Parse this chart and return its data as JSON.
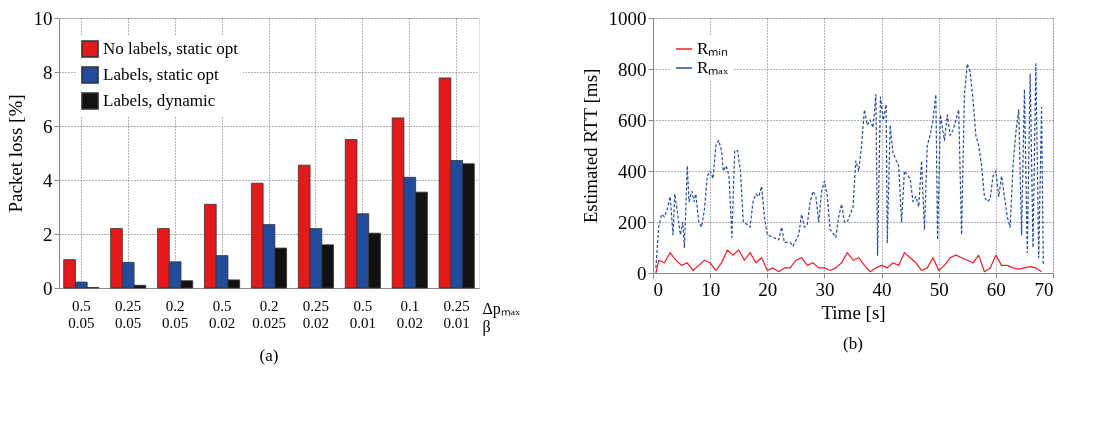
{
  "chart_data": [
    {
      "type": "bar",
      "ylabel": "Packet loss [%]",
      "xlabel": "Δpₘₐₓ\nβ",
      "annotations": [
        "(a)"
      ],
      "categories": [
        "0.5\n0.05",
        "0.25\n0.05",
        "0.2\n0.05",
        "0.5\n0.02",
        "0.2\n0.025",
        "0.25\n0.02",
        "0.5\n0.01",
        "0.1\n0.02",
        "0.25\n0.01"
      ],
      "series": [
        {
          "name": "No labels, static opt",
          "color": "#e31a1c",
          "values": [
            1.05,
            2.2,
            2.2,
            3.1,
            3.88,
            4.55,
            5.5,
            6.3,
            7.78
          ]
        },
        {
          "name": "Labels, static opt",
          "color": "#224b9b",
          "values": [
            0.22,
            0.95,
            0.97,
            1.2,
            2.35,
            2.2,
            2.75,
            4.1,
            4.72
          ]
        },
        {
          "name": "Labels, dynamic",
          "color": "#111111",
          "values": [
            0.02,
            0.1,
            0.27,
            0.3,
            1.48,
            1.6,
            2.03,
            3.55,
            4.6
          ]
        }
      ],
      "ylim": [
        0,
        10
      ],
      "yticks": [
        0,
        2,
        4,
        6,
        8,
        10
      ],
      "grid": true,
      "legend": "top left"
    },
    {
      "type": "line",
      "xlabel": "Time [s]",
      "ylabel": "Estimated RTT [ms]",
      "annotations": [
        "(b)"
      ],
      "series": [
        {
          "name": "Rₘᵢₙ",
          "color": "#e8202a",
          "line_style": "solid",
          "x": [
            0.5,
            1,
            2,
            3,
            4,
            5,
            6,
            7,
            8,
            9,
            10,
            11,
            12,
            13,
            14,
            15,
            16,
            17,
            18,
            19,
            20,
            21,
            22,
            23,
            24,
            25,
            26,
            27,
            28,
            29,
            30,
            31,
            32,
            33,
            34,
            35,
            36,
            37,
            38,
            39,
            40,
            41,
            42,
            43,
            44,
            45,
            46,
            47,
            48,
            49,
            50,
            51,
            52,
            53,
            54,
            55,
            56,
            57,
            58,
            59,
            60,
            61,
            62,
            63,
            64,
            65,
            66,
            67,
            68
          ],
          "values": [
            0,
            50,
            40,
            80,
            50,
            30,
            40,
            10,
            30,
            50,
            40,
            10,
            40,
            90,
            70,
            90,
            50,
            80,
            40,
            60,
            10,
            20,
            5,
            20,
            20,
            50,
            60,
            30,
            40,
            20,
            20,
            10,
            20,
            40,
            80,
            50,
            60,
            30,
            5,
            20,
            30,
            20,
            40,
            30,
            80,
            60,
            40,
            10,
            20,
            60,
            10,
            30,
            60,
            70,
            60,
            50,
            40,
            70,
            5,
            20,
            70,
            30,
            30,
            20,
            15,
            20,
            25,
            20,
            5
          ]
        },
        {
          "name": "Rₘₐₓ",
          "color": "#224b9b",
          "line_style": "dashed",
          "x": [
            0.5,
            1,
            1.5,
            2,
            2.5,
            3,
            3.5,
            3.8,
            4.2,
            4.8,
            5.2,
            5.5,
            6,
            6.3,
            6.8,
            7.2,
            7.5,
            8,
            8.5,
            9,
            9.5,
            10,
            10.5,
            11,
            11.5,
            12,
            12.3,
            12.8,
            13.3,
            13.8,
            14.3,
            14.8,
            15.3,
            15.8,
            16.5,
            17,
            17.5,
            18,
            18.5,
            19,
            19.5,
            20,
            21,
            22,
            22.5,
            23,
            24,
            24.5,
            25.5,
            26,
            26.5,
            27,
            27.5,
            28,
            28.5,
            29,
            29.5,
            30,
            30.5,
            31,
            32,
            32.5,
            33,
            33.5,
            34,
            35,
            35.5,
            36,
            36.5,
            37,
            37.5,
            38,
            38.5,
            39,
            39.3,
            39.8,
            40.3,
            40.8,
            41,
            41.5,
            42,
            43,
            43.5,
            44,
            45,
            45.5,
            46,
            46.5,
            47,
            47.5,
            48,
            48.5,
            49,
            49.5,
            49.8,
            50.3,
            51,
            51.5,
            52,
            52.5,
            53,
            53.5,
            54,
            54.5,
            55,
            55.5,
            56,
            56.5,
            57,
            57.5,
            58,
            58.5,
            59,
            59.5,
            60,
            60.5,
            61,
            61.5,
            62,
            62.5,
            63,
            63.5,
            64,
            64.5,
            65,
            65.5,
            66,
            66.5,
            67,
            67.5,
            68,
            68.3
          ],
          "values": [
            20,
            180,
            230,
            220,
            250,
            300,
            150,
            310,
            250,
            150,
            200,
            100,
            420,
            280,
            320,
            280,
            310,
            200,
            180,
            250,
            380,
            400,
            370,
            500,
            520,
            480,
            400,
            420,
            380,
            140,
            480,
            480,
            400,
            200,
            190,
            180,
            280,
            310,
            300,
            340,
            220,
            150,
            140,
            130,
            180,
            120,
            120,
            105,
            150,
            230,
            180,
            190,
            280,
            320,
            300,
            200,
            320,
            360,
            300,
            170,
            140,
            220,
            270,
            200,
            200,
            260,
            440,
            400,
            500,
            640,
            580,
            600,
            570,
            700,
            70,
            690,
            600,
            660,
            120,
            580,
            470,
            420,
            200,
            400,
            370,
            280,
            300,
            260,
            440,
            170,
            500,
            540,
            600,
            700,
            130,
            620,
            520,
            620,
            540,
            560,
            600,
            640,
            150,
            700,
            820,
            790,
            680,
            540,
            500,
            420,
            300,
            280,
            290,
            380,
            400,
            300,
            380,
            300,
            220,
            180,
            420,
            550,
            640,
            150,
            720,
            80,
            780,
            100,
            820,
            60,
            650,
            30
          ]
        }
      ],
      "xlim": [
        0,
        70
      ],
      "xticks": [
        0,
        10,
        20,
        30,
        40,
        50,
        60,
        70
      ],
      "ylim": [
        0,
        1000
      ],
      "yticks": [
        0,
        200,
        400,
        600,
        800,
        1000
      ],
      "grid": true,
      "legend": "top left"
    }
  ]
}
